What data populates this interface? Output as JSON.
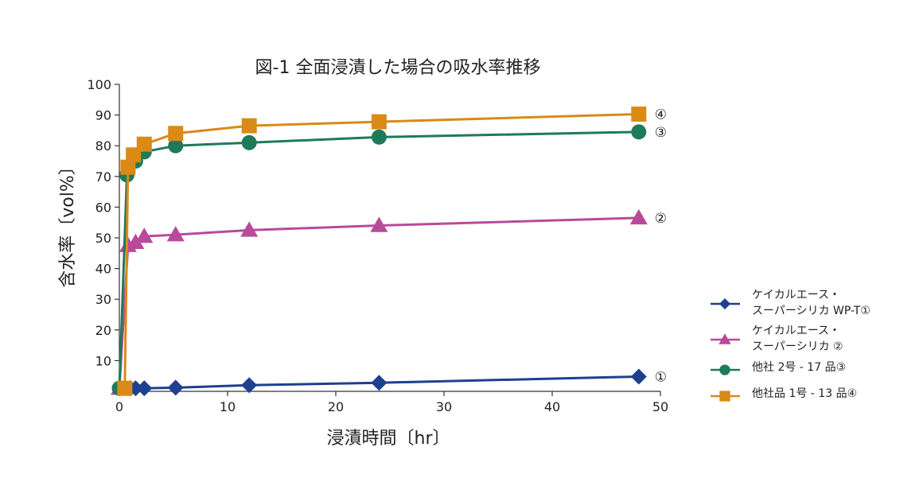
{
  "chart_data": {
    "type": "line",
    "title": "図-1 全面浸漬した場合の吸水率推移",
    "xlabel": "浸漬時間〔hr〕",
    "ylabel": "含水率〔vol%〕",
    "xlim": [
      0,
      50
    ],
    "ylim": [
      0,
      100
    ],
    "x_ticks": [
      "0",
      "10",
      "20",
      "30",
      "40",
      "50"
    ],
    "y_ticks": [
      "10",
      "20",
      "30",
      "40",
      "50",
      "60",
      "70",
      "80",
      "90",
      "100"
    ],
    "grid": false,
    "legend_position": "right",
    "series": [
      {
        "name_lines": [
          "ケイカルエース・",
          "スーパーシリカ WP-T①"
        ],
        "end_label": "①",
        "color": "#1f3f8f",
        "marker": "diamond",
        "x": [
          0.5,
          1,
          1.5,
          2.3,
          5.2,
          12,
          24,
          48
        ],
        "y": [
          1,
          1,
          1,
          1,
          1.2,
          2,
          2.8,
          4.8
        ]
      },
      {
        "name_lines": [
          "ケイカルエース・",
          "スーパーシリカ ②"
        ],
        "end_label": "②",
        "color": "#b94a9a",
        "marker": "triangle",
        "x": [
          0,
          0.8,
          1.5,
          2.3,
          5.2,
          12,
          24,
          48
        ],
        "y": [
          1,
          47.5,
          48.5,
          50.5,
          51,
          52.5,
          54,
          56.5
        ]
      },
      {
        "name_lines": [
          "他社 2号 - 17 品③"
        ],
        "end_label": "③",
        "color": "#1f7a5a",
        "marker": "circle",
        "x": [
          0,
          0.7,
          1.5,
          2.3,
          5.2,
          12,
          24,
          48
        ],
        "y": [
          1,
          70.5,
          75,
          78,
          80,
          81,
          82.8,
          84.5
        ]
      },
      {
        "name_lines": [
          "他社品 1号 - 13 品④"
        ],
        "end_label": "④",
        "color": "#d98a17",
        "marker": "square",
        "x": [
          0.5,
          0.8,
          1.3,
          2.3,
          5.2,
          12,
          24,
          48
        ],
        "y": [
          1,
          73,
          77,
          80.5,
          84,
          86.5,
          87.8,
          90.3
        ]
      }
    ]
  }
}
